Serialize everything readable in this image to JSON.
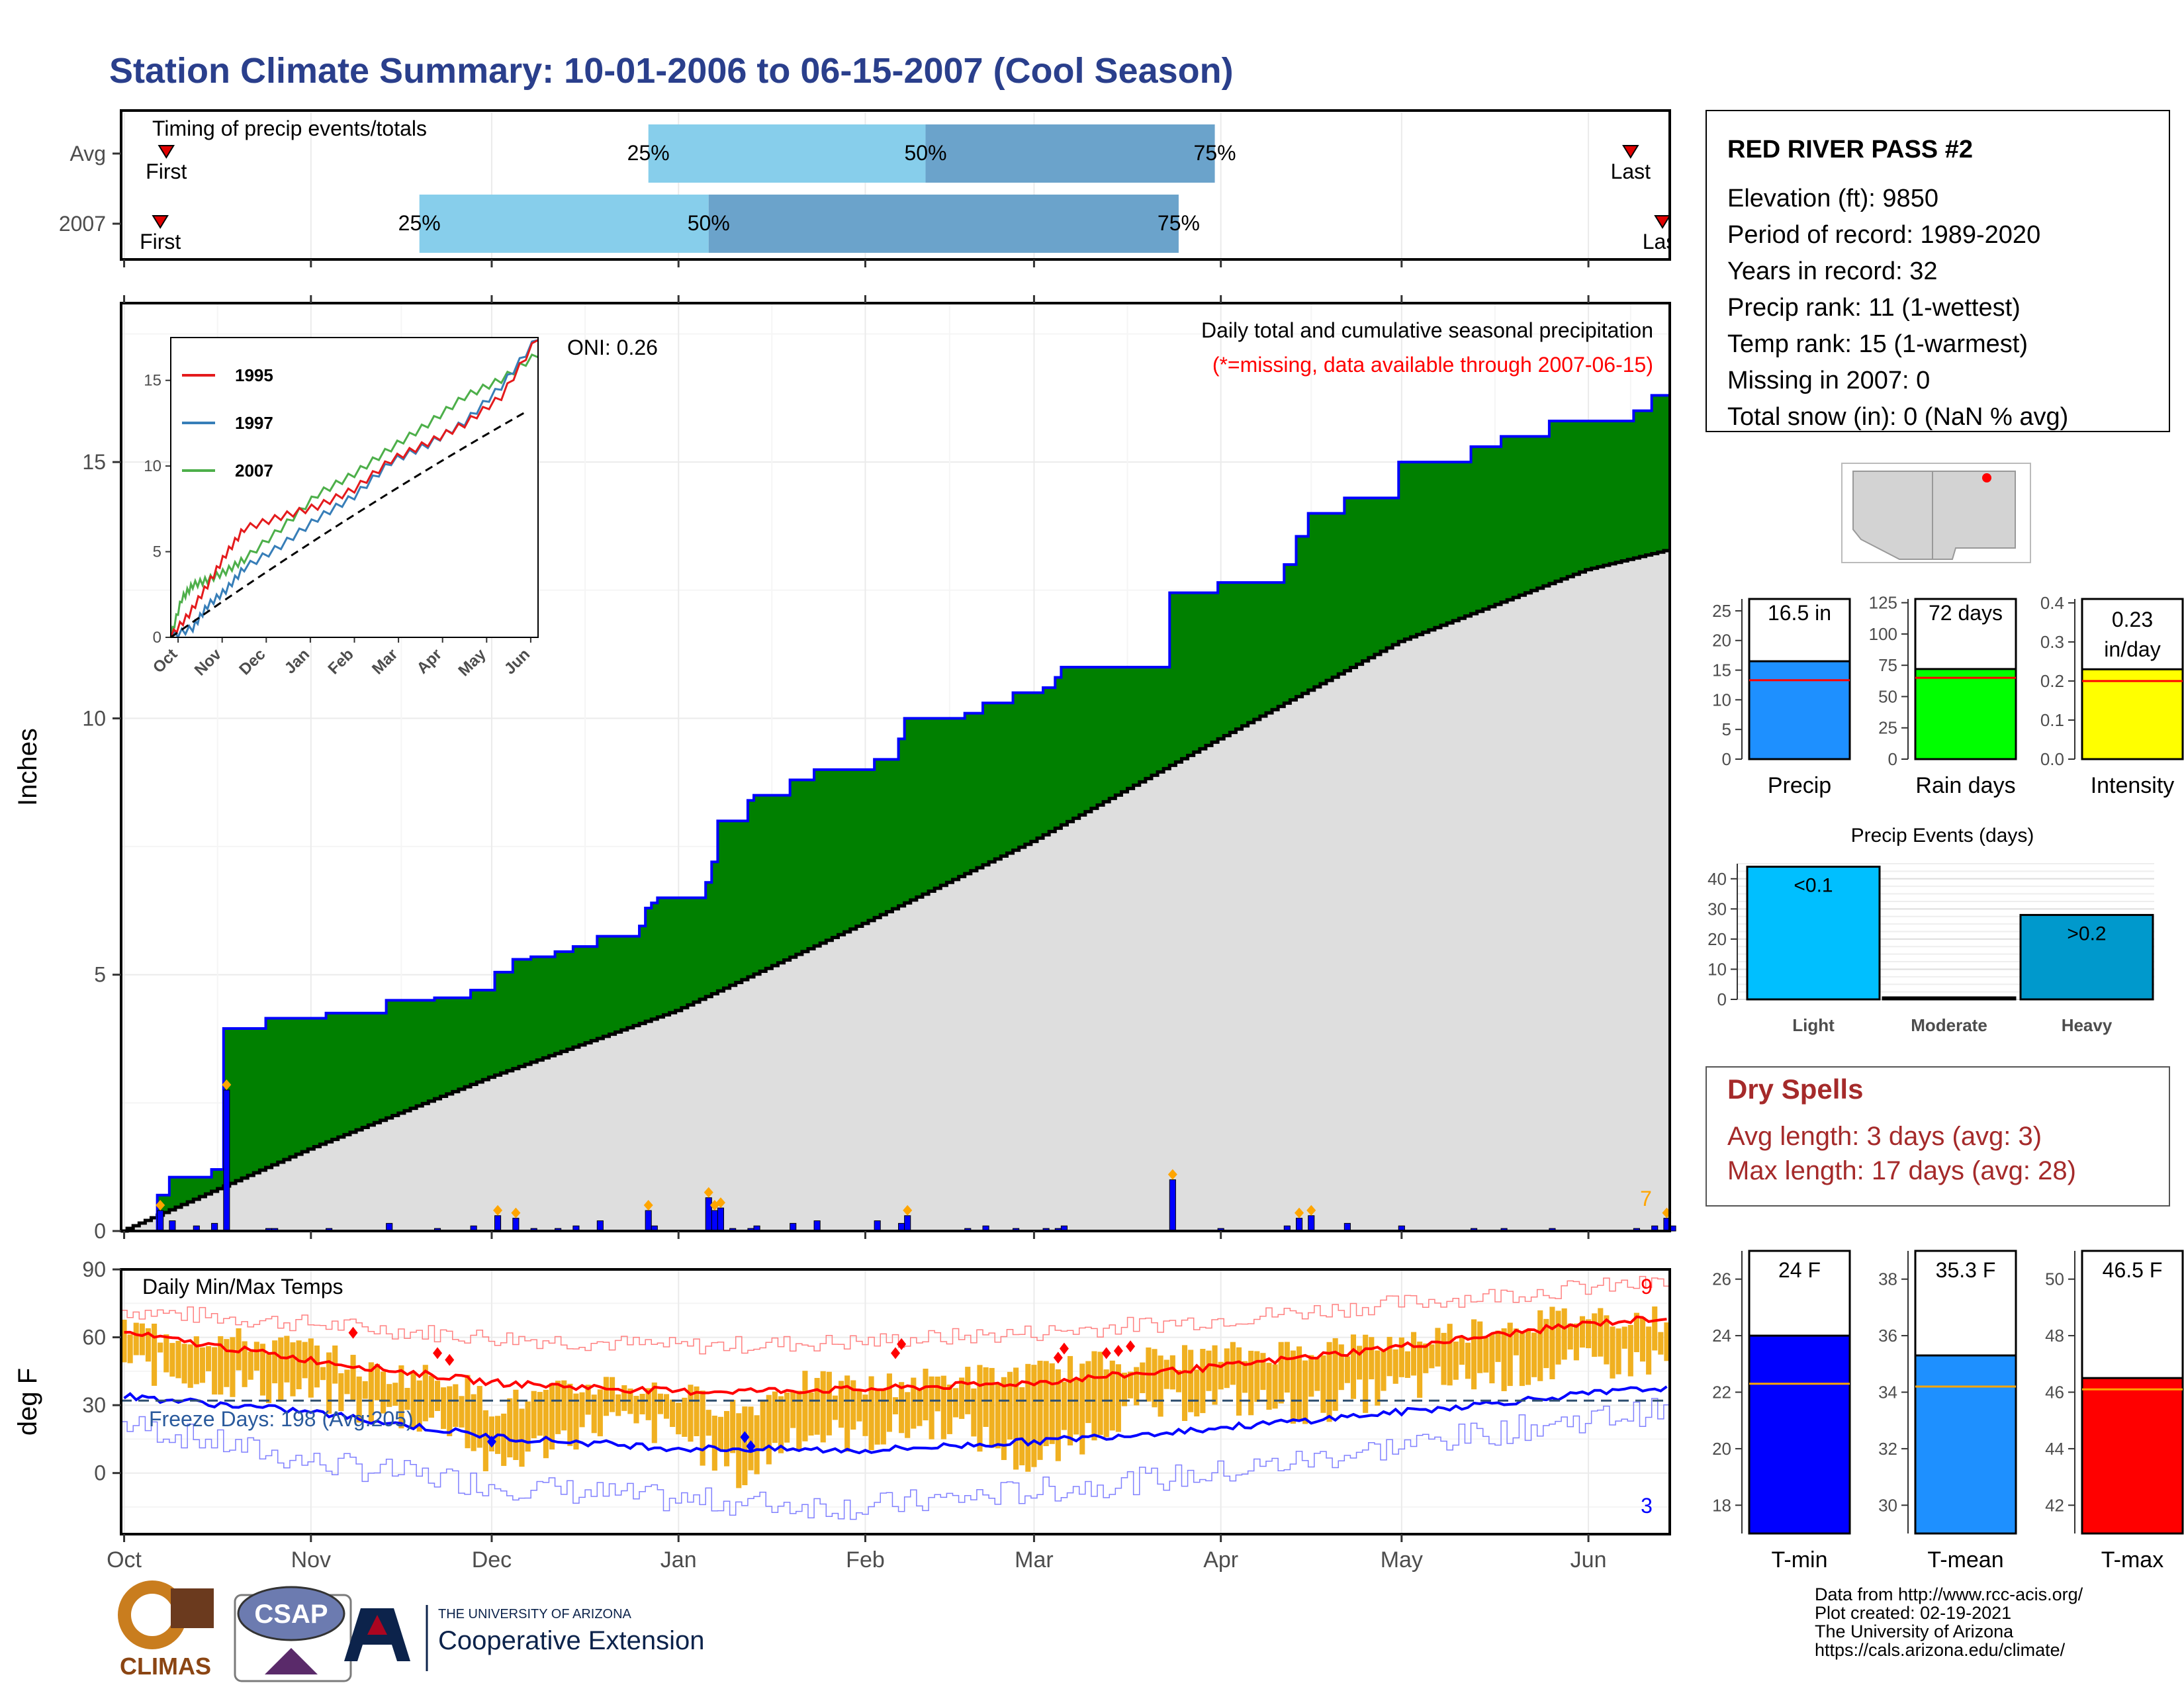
{
  "title": "Station Climate Summary: 10-01-2006 to 06-15-2007 (Cool Season)",
  "colors": {
    "title": "#2A3F8C",
    "green": "#008000",
    "normal_fill": "#DEDEDE",
    "bar_blue": "#0000FF",
    "light_blue": "#87CEEB",
    "mid_blue": "#6BA3CB",
    "orange": "#FFA500",
    "dry_red": "#A52A2A"
  },
  "timing": {
    "label": "Timing of precip events/totals",
    "rows": [
      {
        "name": "Avg",
        "first_label": "First",
        "last_label": "Last",
        "q25_label": "25%",
        "q50_label": "50%",
        "q75_label": "75%",
        "first": "2006-10-08",
        "q25": "2006-12-27",
        "q50": "2007-02-11",
        "q75": "2007-03-31",
        "last": "2007-06-08"
      },
      {
        "name": "2007",
        "first_label": "First",
        "last_label": "Last",
        "q25_label": "25%",
        "q50_label": "50%",
        "q75_label": "75%",
        "first": "2006-10-07",
        "q25": "2006-11-19",
        "q50": "2007-01-06",
        "q75": "2007-03-25",
        "last": "2007-06-15"
      }
    ]
  },
  "station": {
    "name": "RED RIVER PASS #2",
    "lines": [
      "Elevation (ft): 9850",
      "Period of record: 1989-2020",
      "Years in record: 32",
      "Precip rank: 11 (1-wettest)",
      "Temp rank: 15 (1-warmest)",
      "Missing in 2007: 0",
      "Total snow (in): 0 (NaN % avg)"
    ]
  },
  "precip_panel": {
    "ylabel": "Inches",
    "oni_label": "ONI: 0.26",
    "caption": "Daily total and cumulative seasonal precipitation",
    "missing_note": "(*=missing, data available through 2007-06-15)",
    "end_count_label": "7"
  },
  "inset": {
    "series": [
      {
        "name": "1995",
        "color": "#E41A1C"
      },
      {
        "name": "1997",
        "color": "#377EB8"
      },
      {
        "name": "2007",
        "color": "#4DAF4A"
      }
    ],
    "months": [
      "Oct",
      "Nov",
      "Dec",
      "Jan",
      "Feb",
      "Mar",
      "Apr",
      "May",
      "Jun"
    ]
  },
  "temp_panel": {
    "ylabel": "deg F",
    "caption": "Daily Min/Max Temps",
    "freeze_label": "Freeze Days: 198 (Avg:205)",
    "high_count_label": "9",
    "low_count_label": "3"
  },
  "summary_bars": [
    {
      "label": "Precip",
      "value_label": "16.5 in"
    },
    {
      "label": "Rain days",
      "value_label": "72 days"
    },
    {
      "label": "Intensity",
      "value_label": "0.23 in/day"
    }
  ],
  "events": {
    "title": "Precip Events (days)",
    "bars": [
      {
        "label": "Light",
        "value_label": "<0.1"
      },
      {
        "label": "Moderate",
        "value_label": ""
      },
      {
        "label": "Heavy",
        "value_label": ">0.2"
      }
    ]
  },
  "dry_spells": {
    "title": "Dry Spells",
    "avg_line": "Avg length: 3 days (avg: 3)",
    "max_line": "Max length: 17 days (avg: 28)"
  },
  "temp_bars": [
    {
      "label": "T-min",
      "value_label": "24 F"
    },
    {
      "label": "T-mean",
      "value_label": "35.3 F"
    },
    {
      "label": "T-max",
      "value_label": "46.5 F"
    }
  ],
  "credits": [
    "Data from http://www.rcc-acis.org/",
    "Plot created: 02-19-2021",
    "The University of Arizona",
    "https://cals.arizona.edu/climate/"
  ],
  "logos": {
    "climas": "CLIMAS",
    "csap": "CSAP",
    "ua_small": "THE UNIVERSITY OF ARIZONA",
    "ua_big": "Cooperative Extension"
  },
  "chart_data": [
    {
      "type": "area",
      "title": "Daily total and cumulative seasonal precipitation",
      "ylabel": "Inches",
      "ylim": [
        0,
        18.1
      ],
      "xlim": [
        "2006-10-01",
        "2007-06-15"
      ],
      "x_ticks": [
        "Oct",
        "Nov",
        "Dec",
        "Jan",
        "Feb",
        "Mar",
        "Apr",
        "May",
        "Jun"
      ],
      "y_ticks": [
        0,
        5,
        10,
        15
      ],
      "cumulative_2007": [
        [
          "2006-10-01",
          0
        ],
        [
          "2006-10-07",
          0.7
        ],
        [
          "2006-10-09",
          1.05
        ],
        [
          "2006-10-16",
          1.2
        ],
        [
          "2006-10-18",
          3.95
        ],
        [
          "2006-10-25",
          4.15
        ],
        [
          "2006-11-04",
          4.25
        ],
        [
          "2006-11-14",
          4.5
        ],
        [
          "2006-11-22",
          4.55
        ],
        [
          "2006-11-28",
          4.7
        ],
        [
          "2006-12-02",
          5.05
        ],
        [
          "2006-12-05",
          5.3
        ],
        [
          "2006-12-08",
          5.35
        ],
        [
          "2006-12-12",
          5.45
        ],
        [
          "2006-12-15",
          5.55
        ],
        [
          "2006-12-19",
          5.75
        ],
        [
          "2006-12-26",
          5.95
        ],
        [
          "2006-12-27",
          6.3
        ],
        [
          "2006-12-28",
          6.4
        ],
        [
          "2006-12-29",
          6.5
        ],
        [
          "2007-01-06",
          6.8
        ],
        [
          "2007-01-07",
          7.2
        ],
        [
          "2007-01-08",
          8.0
        ],
        [
          "2007-01-13",
          8.4
        ],
        [
          "2007-01-14",
          8.5
        ],
        [
          "2007-01-20",
          8.8
        ],
        [
          "2007-01-24",
          9.0
        ],
        [
          "2007-02-03",
          9.2
        ],
        [
          "2007-02-07",
          9.6
        ],
        [
          "2007-02-08",
          10.0
        ],
        [
          "2007-02-18",
          10.1
        ],
        [
          "2007-02-21",
          10.3
        ],
        [
          "2007-02-26",
          10.5
        ],
        [
          "2007-03-03",
          10.6
        ],
        [
          "2007-03-05",
          10.8
        ],
        [
          "2007-03-06",
          11.0
        ],
        [
          "2007-03-24",
          12.45
        ],
        [
          "2007-04-01",
          12.65
        ],
        [
          "2007-04-12",
          13.0
        ],
        [
          "2007-04-14",
          13.55
        ],
        [
          "2007-04-16",
          14.0
        ],
        [
          "2007-04-22",
          14.3
        ],
        [
          "2007-04-28",
          14.3
        ],
        [
          "2007-05-01",
          15.0
        ],
        [
          "2007-05-13",
          15.3
        ],
        [
          "2007-05-18",
          15.5
        ],
        [
          "2007-05-26",
          15.8
        ],
        [
          "2007-06-09",
          16.0
        ],
        [
          "2007-06-12",
          16.3
        ],
        [
          "2007-06-15",
          16.5
        ]
      ],
      "cumulative_normal": [
        [
          "2006-10-01",
          0
        ],
        [
          "2006-11-01",
          1.6
        ],
        [
          "2006-12-01",
          3.0
        ],
        [
          "2007-01-01",
          4.3
        ],
        [
          "2007-02-01",
          6.0
        ],
        [
          "2007-03-01",
          7.6
        ],
        [
          "2007-04-01",
          9.6
        ],
        [
          "2007-05-01",
          11.5
        ],
        [
          "2007-06-01",
          12.9
        ],
        [
          "2007-06-15",
          13.3
        ]
      ],
      "daily_events": [
        [
          "2006-10-07",
          0.4
        ],
        [
          "2006-10-09",
          0.2
        ],
        [
          "2006-10-13",
          0.1
        ],
        [
          "2006-10-16",
          0.15
        ],
        [
          "2006-10-18",
          2.75
        ],
        [
          "2006-10-25",
          0.05
        ],
        [
          "2006-10-26",
          0.05
        ],
        [
          "2006-11-04",
          0.05
        ],
        [
          "2006-11-14",
          0.15
        ],
        [
          "2006-11-22",
          0.05
        ],
        [
          "2006-11-28",
          0.1
        ],
        [
          "2006-12-02",
          0.3
        ],
        [
          "2006-12-05",
          0.25
        ],
        [
          "2006-12-08",
          0.05
        ],
        [
          "2006-12-12",
          0.05
        ],
        [
          "2006-12-15",
          0.1
        ],
        [
          "2006-12-19",
          0.2
        ],
        [
          "2006-12-27",
          0.4
        ],
        [
          "2006-12-28",
          0.1
        ],
        [
          "2007-01-06",
          0.65
        ],
        [
          "2007-01-07",
          0.4
        ],
        [
          "2007-01-08",
          0.45
        ],
        [
          "2007-01-10",
          0.05
        ],
        [
          "2007-01-13",
          0.05
        ],
        [
          "2007-01-14",
          0.1
        ],
        [
          "2007-01-20",
          0.15
        ],
        [
          "2007-01-24",
          0.2
        ],
        [
          "2007-02-03",
          0.2
        ],
        [
          "2007-02-07",
          0.15
        ],
        [
          "2007-02-08",
          0.3
        ],
        [
          "2007-02-18",
          0.05
        ],
        [
          "2007-02-21",
          0.1
        ],
        [
          "2007-02-26",
          0.05
        ],
        [
          "2007-03-03",
          0.05
        ],
        [
          "2007-03-05",
          0.05
        ],
        [
          "2007-03-06",
          0.1
        ],
        [
          "2007-03-24",
          1.0
        ],
        [
          "2007-04-01",
          0.05
        ],
        [
          "2007-04-12",
          0.1
        ],
        [
          "2007-04-14",
          0.25
        ],
        [
          "2007-04-16",
          0.3
        ],
        [
          "2007-04-22",
          0.15
        ],
        [
          "2007-05-01",
          0.1
        ],
        [
          "2007-05-13",
          0.05
        ],
        [
          "2007-05-18",
          0.05
        ],
        [
          "2007-05-26",
          0.05
        ],
        [
          "2007-06-09",
          0.05
        ],
        [
          "2007-06-12",
          0.1
        ],
        [
          "2007-06-14",
          0.25
        ],
        [
          "2007-06-15",
          0.1
        ]
      ]
    },
    {
      "type": "line",
      "title": "Daily Min/Max Temps",
      "ylabel": "deg F",
      "ylim": [
        -27,
        90
      ],
      "y_ticks": [
        0,
        30,
        60,
        90
      ],
      "freeze_line": 32,
      "avg_max": [
        [
          "2006-10-01",
          62
        ],
        [
          "2006-11-01",
          50
        ],
        [
          "2006-12-01",
          40
        ],
        [
          "2007-01-01",
          36
        ],
        [
          "2007-02-01",
          37
        ],
        [
          "2007-03-01",
          40
        ],
        [
          "2007-04-01",
          47
        ],
        [
          "2007-05-01",
          56
        ],
        [
          "2007-06-01",
          66
        ],
        [
          "2007-06-15",
          69
        ]
      ],
      "avg_min": [
        [
          "2006-10-01",
          34
        ],
        [
          "2006-11-01",
          27
        ],
        [
          "2006-12-01",
          16
        ],
        [
          "2007-01-01",
          11
        ],
        [
          "2007-02-01",
          10
        ],
        [
          "2007-03-01",
          14
        ],
        [
          "2007-04-01",
          20
        ],
        [
          "2007-05-01",
          27
        ],
        [
          "2007-06-01",
          35
        ],
        [
          "2007-06-15",
          38
        ]
      ],
      "record_max": [
        [
          "2006-10-01",
          72
        ],
        [
          "2006-11-01",
          66
        ],
        [
          "2006-12-01",
          60
        ],
        [
          "2007-01-01",
          56
        ],
        [
          "2007-02-01",
          58
        ],
        [
          "2007-03-01",
          62
        ],
        [
          "2007-04-01",
          68
        ],
        [
          "2007-05-01",
          75
        ],
        [
          "2007-06-01",
          82
        ],
        [
          "2007-06-15",
          84
        ]
      ],
      "record_min": [
        [
          "2006-10-01",
          22
        ],
        [
          "2006-11-01",
          5
        ],
        [
          "2006-12-01",
          -5
        ],
        [
          "2007-01-01",
          -12
        ],
        [
          "2007-02-01",
          -15
        ],
        [
          "2007-03-01",
          -8
        ],
        [
          "2007-04-01",
          0
        ],
        [
          "2007-05-01",
          12
        ],
        [
          "2007-06-01",
          24
        ],
        [
          "2007-06-15",
          28
        ]
      ],
      "daily_anchors": [
        [
          "2006-10-01",
          40,
          64
        ],
        [
          "2006-10-15",
          34,
          60
        ],
        [
          "2006-11-01",
          27,
          55
        ],
        [
          "2006-11-10",
          20,
          45
        ],
        [
          "2006-11-25",
          14,
          42
        ],
        [
          "2006-12-01",
          -6,
          30
        ],
        [
          "2006-12-10",
          5,
          34
        ],
        [
          "2006-12-20",
          15,
          40
        ],
        [
          "2007-01-01",
          10,
          35
        ],
        [
          "2007-01-12",
          -10,
          28
        ],
        [
          "2007-01-20",
          10,
          40
        ],
        [
          "2007-02-01",
          8,
          38
        ],
        [
          "2007-02-15",
          15,
          42
        ],
        [
          "2007-03-01",
          -5,
          44
        ],
        [
          "2007-03-15",
          18,
          50
        ],
        [
          "2007-04-01",
          25,
          52
        ],
        [
          "2007-04-15",
          20,
          55
        ],
        [
          "2007-05-01",
          30,
          58
        ],
        [
          "2007-05-15",
          35,
          65
        ],
        [
          "2007-06-01",
          40,
          70
        ],
        [
          "2007-06-15",
          42,
          68
        ]
      ]
    },
    {
      "type": "bar",
      "title": "",
      "categories": [
        "Precip",
        "Rain days",
        "Intensity"
      ],
      "values": [
        16.5,
        72,
        0.23
      ],
      "averages": [
        13.3,
        65,
        0.2
      ],
      "units": [
        "in",
        "days",
        "in/day"
      ],
      "ylims": [
        [
          0,
          27
        ],
        [
          0,
          128
        ],
        [
          0,
          0.41
        ]
      ],
      "y_ticks": [
        [
          0,
          5,
          10,
          15,
          20,
          25
        ],
        [
          0,
          25,
          50,
          75,
          100,
          125
        ],
        [
          0.0,
          0.1,
          0.2,
          0.3,
          0.4
        ]
      ],
      "colors": [
        "#1E90FF",
        "#00FF00",
        "#FFFF00"
      ]
    },
    {
      "type": "bar",
      "title": "Precip Events (days)",
      "categories": [
        "Light",
        "Moderate",
        "Heavy"
      ],
      "values": [
        44,
        0,
        28
      ],
      "ylim": [
        0,
        45
      ],
      "y_ticks": [
        0,
        10,
        20,
        30,
        40
      ],
      "colors": [
        "#00BFFF",
        "#1E90FF",
        "#0099CC"
      ]
    },
    {
      "type": "bar",
      "title": "",
      "categories": [
        "T-min",
        "T-mean",
        "T-max"
      ],
      "values": [
        24,
        35.3,
        46.5
      ],
      "averages": [
        22.3,
        34.2,
        46.1
      ],
      "ylims": [
        [
          17,
          27
        ],
        [
          29,
          39
        ],
        [
          41,
          51
        ]
      ],
      "y_ticks": [
        [
          18,
          20,
          22,
          24,
          26
        ],
        [
          30,
          32,
          34,
          36,
          38
        ],
        [
          42,
          44,
          46,
          48,
          50
        ]
      ],
      "colors": [
        "#0000FF",
        "#1E90FF",
        "#FF0000"
      ]
    }
  ]
}
